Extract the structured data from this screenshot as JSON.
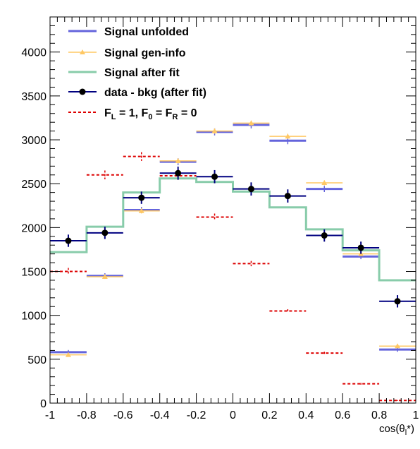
{
  "chart_data": {
    "type": "line",
    "title": "",
    "xlabel": "cos(θ_l*)",
    "xlabel_main": "cos(θ",
    "xlabel_sub": "l",
    "xlabel_tail": "*)",
    "ylabel": "",
    "xlim": [
      -1,
      1
    ],
    "ylim": [
      0,
      4400
    ],
    "x_ticks": [
      -1,
      -0.8,
      -0.6,
      -0.4,
      -0.2,
      0,
      0.2,
      0.4,
      0.6,
      0.8,
      1
    ],
    "x_tick_labels": [
      "-1",
      "-0.8",
      "-0.6",
      "-0.4",
      "-0.2",
      "0",
      "0.2",
      "0.4",
      "0.6",
      "0.8",
      "1"
    ],
    "y_ticks": [
      0,
      500,
      1000,
      1500,
      2000,
      2500,
      3000,
      3500,
      4000
    ],
    "y_tick_labels": [
      "0",
      "500",
      "1000",
      "1500",
      "2000",
      "2500",
      "3000",
      "3500",
      "4000"
    ],
    "grid": false,
    "legend_position": "top-left",
    "bin_edges": [
      -1,
      -0.8,
      -0.6,
      -0.4,
      -0.2,
      0,
      0.2,
      0.4,
      0.6,
      0.8,
      1
    ],
    "bin_centers": [
      -0.9,
      -0.7,
      -0.5,
      -0.3,
      -0.1,
      0.1,
      0.3,
      0.5,
      0.7,
      0.9
    ],
    "series": [
      {
        "name": "Signal unfolded",
        "color": "#6464dc",
        "style": "hist-errors",
        "values": [
          580,
          1450,
          2200,
          2750,
          3090,
          3170,
          2990,
          2440,
          1670,
          610
        ],
        "errors": [
          25,
          30,
          35,
          40,
          40,
          40,
          40,
          35,
          30,
          25
        ]
      },
      {
        "name": "Signal gen-info",
        "color": "#ffc864",
        "style": "hist-triangles",
        "values": [
          550,
          1440,
          2190,
          2760,
          3100,
          3190,
          3040,
          2510,
          1700,
          650
        ],
        "errors": [
          20,
          25,
          30,
          30,
          30,
          30,
          30,
          30,
          25,
          20
        ]
      },
      {
        "name": "Signal after fit",
        "color": "#88ccaa",
        "style": "step",
        "values": [
          1720,
          2010,
          2400,
          2560,
          2520,
          2410,
          2230,
          1980,
          1740,
          1400
        ]
      },
      {
        "name": "data - bkg (after fit)",
        "color": "#000080",
        "style": "points-errors",
        "values": [
          1850,
          1940,
          2340,
          2620,
          2580,
          2440,
          2360,
          1910,
          1770,
          1160
        ],
        "errors": [
          70,
          70,
          70,
          75,
          75,
          75,
          75,
          70,
          70,
          70
        ]
      },
      {
        "name": "F_L = 1, F_0 = F_R = 0",
        "color": "#dd0000",
        "style": "dashed-hist",
        "values": [
          1500,
          2600,
          2810,
          2590,
          2120,
          1590,
          1050,
          570,
          220,
          30
        ],
        "errors": [
          40,
          50,
          50,
          45,
          40,
          30,
          20,
          15,
          10,
          5
        ]
      }
    ]
  },
  "legend": [
    {
      "label": "Signal unfolded",
      "main": "Signal unfolded"
    },
    {
      "label": "Signal gen-info",
      "main": "Signal gen-info"
    },
    {
      "label": "Signal after fit",
      "main": "Signal after fit"
    },
    {
      "label": "data - bkg (after fit)",
      "main": "data - bkg (after fit)"
    },
    {
      "label": "F_L = 1, F_0 = F_R = 0",
      "parts": [
        "F",
        "L",
        " = 1, F",
        "0",
        " = F",
        "R",
        " = 0"
      ]
    }
  ]
}
